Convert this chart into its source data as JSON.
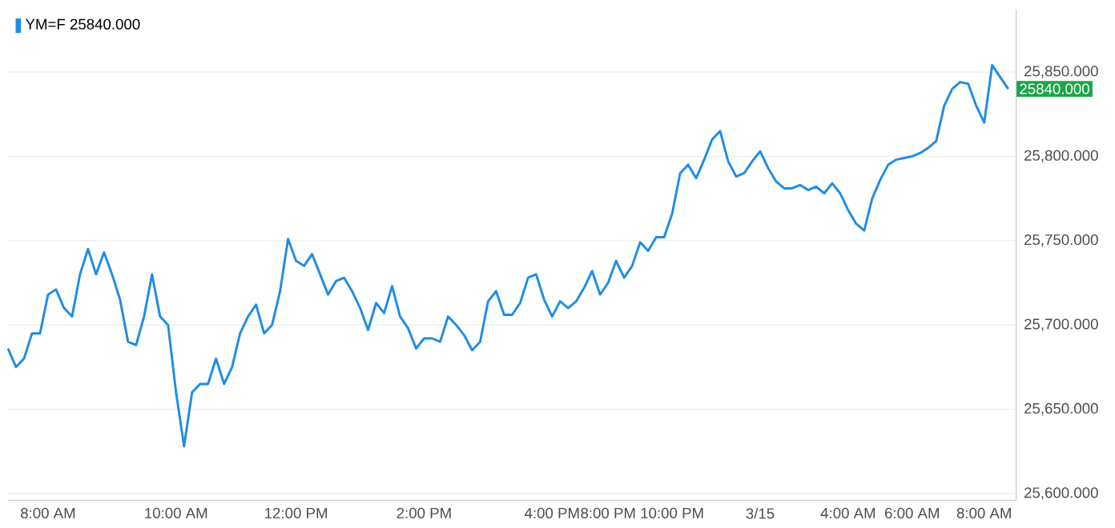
{
  "chart_data": {
    "type": "line",
    "categories": [
      null,
      null,
      null,
      null,
      null,
      "8:00 AM",
      null,
      null,
      null,
      null,
      null,
      null,
      null,
      null,
      null,
      null,
      null,
      null,
      null,
      null,
      null,
      "10:00 AM",
      null,
      null,
      null,
      null,
      null,
      null,
      null,
      null,
      null,
      null,
      null,
      null,
      null,
      null,
      "12:00 PM",
      null,
      null,
      null,
      null,
      null,
      null,
      null,
      null,
      null,
      null,
      null,
      null,
      null,
      null,
      null,
      "2:00 PM",
      null,
      null,
      null,
      null,
      null,
      null,
      null,
      null,
      null,
      null,
      null,
      null,
      null,
      null,
      null,
      "4:00 PM",
      null,
      null,
      null,
      null,
      null,
      null,
      "8:00 PM",
      null,
      null,
      null,
      null,
      null,
      null,
      null,
      "10:00 PM",
      null,
      null,
      null,
      null,
      null,
      null,
      null,
      null,
      null,
      null,
      "3/15",
      null,
      null,
      null,
      null,
      null,
      null,
      null,
      null,
      null,
      null,
      "4:00 AM",
      null,
      null,
      null,
      null,
      null,
      null,
      null,
      "6:00 AM",
      null,
      null,
      null,
      null,
      null,
      null,
      null,
      null,
      "8:00 AM",
      null,
      null,
      null
    ],
    "series": [
      {
        "name": "YM=F 25840.000",
        "color": "#1f8ce5",
        "values": [
          25686,
          25675,
          25680,
          25695,
          25695,
          25718,
          25721,
          25710,
          25705,
          25730,
          25745,
          25730,
          25743,
          25730,
          25715,
          25690,
          25688,
          25705,
          25730,
          25705,
          25700,
          25660,
          25628,
          25660,
          25665,
          25665,
          25680,
          25665,
          25675,
          25695,
          25705,
          25712,
          25695,
          25700,
          25720,
          25751,
          25738,
          25735,
          25742,
          25730,
          25718,
          25726,
          25728,
          25720,
          25710,
          25697,
          25713,
          25707,
          25723,
          25705,
          25698,
          25686,
          25692,
          25692,
          25690,
          25705,
          25700,
          25694,
          25685,
          25690,
          25714,
          25720,
          25706,
          25706,
          25713,
          25728,
          25730,
          25715,
          25705,
          25714,
          25710,
          25714,
          25722,
          25732,
          25718,
          25725,
          25738,
          25728,
          25735,
          25749,
          25744,
          25752,
          25752,
          25766,
          25790,
          25795,
          25787,
          25798,
          25810,
          25815,
          25797,
          25788,
          25790,
          25797,
          25803,
          25793,
          25785,
          25781,
          25781,
          25783,
          25780,
          25782,
          25778,
          25784,
          25778,
          25768,
          25760,
          25756,
          25775,
          25786,
          25795,
          25798,
          25799,
          25800,
          25802,
          25805,
          25809,
          25830,
          25840,
          25844,
          25843,
          25830,
          25820,
          25854,
          25847,
          25840
        ]
      }
    ],
    "ylim": [
      25596,
      25887
    ],
    "yticks": [
      {
        "value": 25600,
        "label": "25,600.000"
      },
      {
        "value": 25650,
        "label": "25,650.000"
      },
      {
        "value": 25700,
        "label": "25,700.000"
      },
      {
        "value": 25750,
        "label": "25,750.000"
      },
      {
        "value": 25800,
        "label": "25,800.000"
      },
      {
        "value": 25850,
        "label": "25,850.000"
      }
    ],
    "annotations": [
      "25840.000"
    ],
    "grid": "y",
    "legend": "top left",
    "marker": "none",
    "line_style": "solid"
  }
}
